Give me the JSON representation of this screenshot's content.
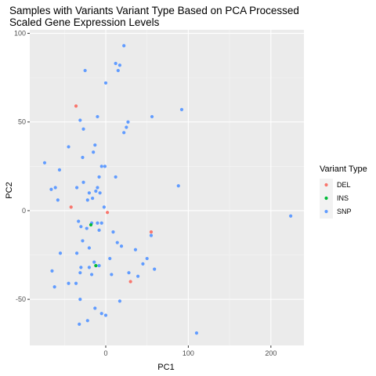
{
  "chart_data": {
    "type": "scatter",
    "title_lines": [
      "Samples with Variants Variant Type Based on PCA Processed",
      "Scaled Gene Expression Levels"
    ],
    "xlabel": "PC1",
    "ylabel": "PC2",
    "xlim": [
      -92,
      240
    ],
    "ylim": [
      -76,
      102
    ],
    "x_ticks": [
      0,
      100,
      200
    ],
    "y_ticks": [
      -50,
      0,
      50,
      100
    ],
    "x_minor_ticks": [
      -50,
      50,
      150
    ],
    "y_minor_ticks": [
      -25,
      25,
      75
    ],
    "grid": true,
    "legend": {
      "title": "Variant Type",
      "position": "right"
    },
    "series": [
      {
        "name": "DEL",
        "color": "#F8766D",
        "points": [
          [
            -36,
            59
          ],
          [
            -42,
            2
          ],
          [
            2,
            -1
          ],
          [
            55,
            -12
          ],
          [
            30,
            -40
          ]
        ]
      },
      {
        "name": "INS",
        "color": "#00BA38",
        "points": [
          [
            -18,
            -8
          ],
          [
            -12,
            -31
          ]
        ]
      },
      {
        "name": "SNP",
        "color": "#619CFF",
        "points": [
          [
            22,
            93
          ],
          [
            12,
            83
          ],
          [
            17,
            82
          ],
          [
            15,
            79
          ],
          [
            -25,
            79
          ],
          [
            0,
            72
          ],
          [
            92,
            57
          ],
          [
            56,
            53
          ],
          [
            -10,
            53
          ],
          [
            -31,
            51
          ],
          [
            27,
            50
          ],
          [
            25,
            47
          ],
          [
            22,
            44
          ],
          [
            -27,
            46
          ],
          [
            -13,
            37
          ],
          [
            -45,
            36
          ],
          [
            -15,
            33
          ],
          [
            -28,
            30
          ],
          [
            -74,
            27
          ],
          [
            -56,
            23
          ],
          [
            -5,
            25
          ],
          [
            -1,
            25
          ],
          [
            12,
            19
          ],
          [
            -8,
            19
          ],
          [
            -27,
            16
          ],
          [
            -10,
            13
          ],
          [
            -35,
            13
          ],
          [
            -61,
            13
          ],
          [
            -66,
            12
          ],
          [
            -12,
            11
          ],
          [
            -7,
            10
          ],
          [
            -20,
            10
          ],
          [
            88,
            14
          ],
          [
            -16,
            7
          ],
          [
            -22,
            6
          ],
          [
            -58,
            6
          ],
          [
            -2,
            2
          ],
          [
            224,
            -3
          ],
          [
            -33,
            -6
          ],
          [
            -30,
            -9
          ],
          [
            -5,
            -7
          ],
          [
            -10,
            -7
          ],
          [
            -17,
            -7
          ],
          [
            -23,
            -10
          ],
          [
            -8,
            -11
          ],
          [
            9,
            -12
          ],
          [
            55,
            -14
          ],
          [
            -28,
            -17
          ],
          [
            14,
            -18
          ],
          [
            -20,
            -21
          ],
          [
            19,
            -20
          ],
          [
            36,
            -22
          ],
          [
            5,
            -27
          ],
          [
            -35,
            -24
          ],
          [
            -55,
            -24
          ],
          [
            -14,
            -29
          ],
          [
            -8,
            -31
          ],
          [
            50,
            -27
          ],
          [
            45,
            -30
          ],
          [
            -20,
            -32
          ],
          [
            -30,
            -32
          ],
          [
            59,
            -33
          ],
          [
            -65,
            -34
          ],
          [
            28,
            -35
          ],
          [
            -31,
            -35
          ],
          [
            -17,
            -36
          ],
          [
            7,
            -36
          ],
          [
            39,
            -37
          ],
          [
            -45,
            -41
          ],
          [
            -36,
            -41
          ],
          [
            -62,
            -43
          ],
          [
            17,
            -51
          ],
          [
            -31,
            -50
          ],
          [
            -13,
            -55
          ],
          [
            -5,
            -58
          ],
          [
            0,
            -59
          ],
          [
            -22,
            -62
          ],
          [
            -32,
            -64
          ],
          [
            110,
            -69
          ]
        ]
      }
    ]
  }
}
